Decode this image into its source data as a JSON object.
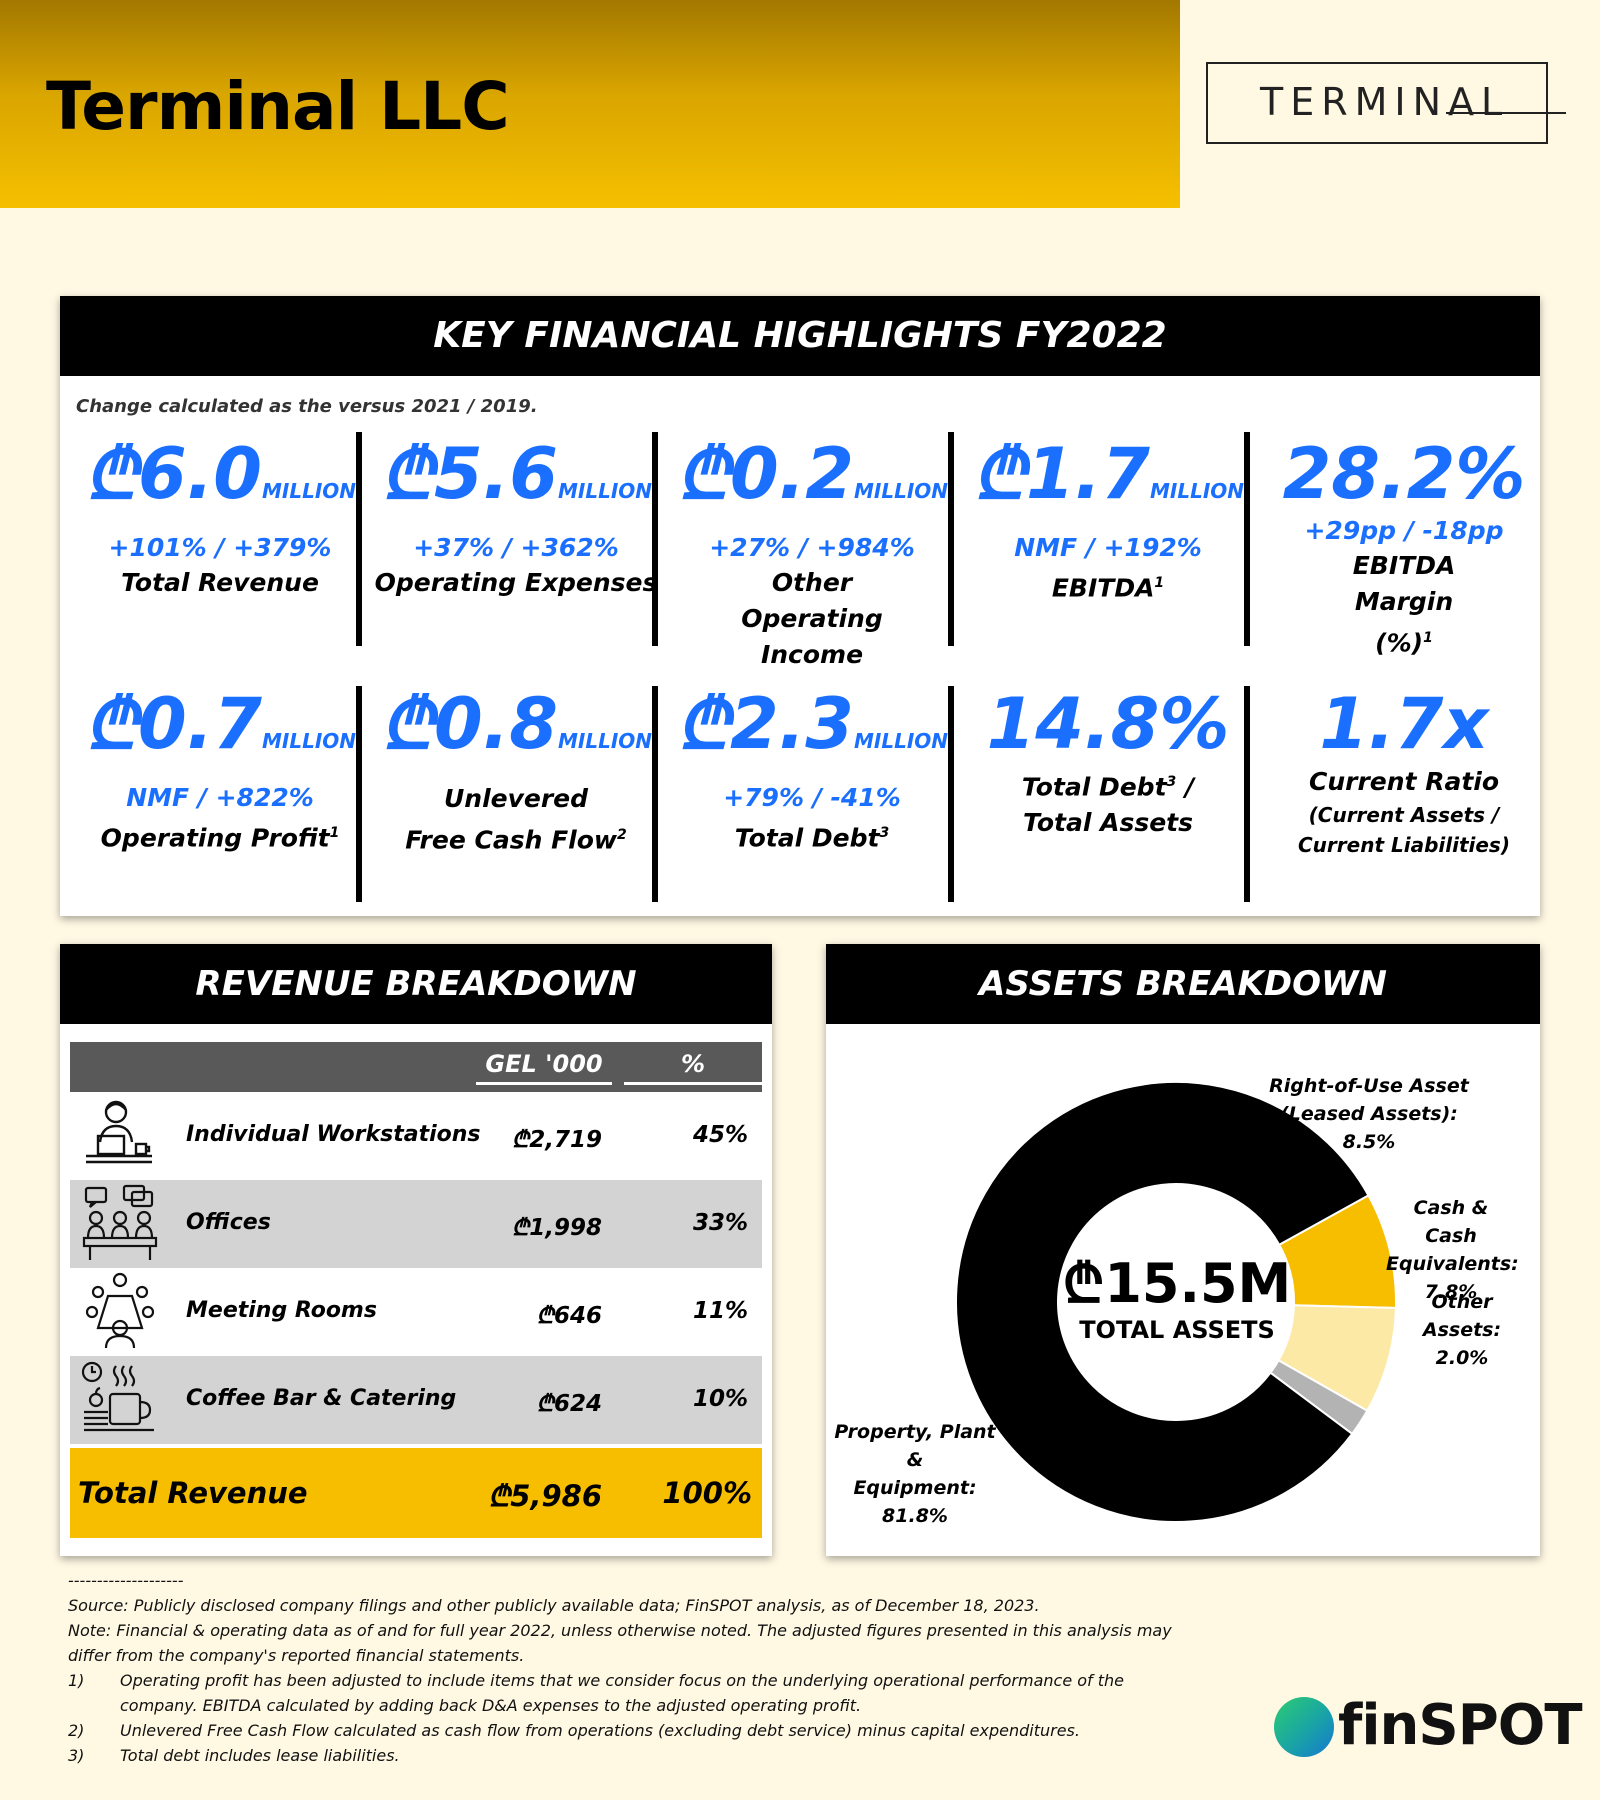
{
  "header": {
    "title": "Terminal LLC",
    "logo_text": "TERMINAL",
    "brand_color": "#f6c000"
  },
  "highlights": {
    "title": "KEY FINANCIAL HIGHLIGHTS FY2022",
    "note": "Change calculated as the versus 2021 / 2019.",
    "row1": [
      {
        "value": "₾6.0",
        "unit": "MILLION",
        "change": "+101% / +379%",
        "label": "Total Revenue",
        "sup": ""
      },
      {
        "value": "₾5.6",
        "unit": "MILLION",
        "change": "+37% / +362%",
        "label": "Operating Expenses",
        "sup": ""
      },
      {
        "value": "₾0.2",
        "unit": "MILLION",
        "change": "+27% / +984%",
        "label": "Other Operating Income",
        "sup": ""
      },
      {
        "value": "₾1.7",
        "unit": "MILLION",
        "change": "NMF / +192%",
        "label": "EBITDA",
        "sup": "1"
      },
      {
        "value": "28.2%",
        "unit": "",
        "change": "+29pp / -18pp",
        "label": "EBITDA Margin (%)",
        "sup": "1"
      }
    ],
    "row2": [
      {
        "value": "₾0.7",
        "unit": "MILLION",
        "change": "NMF / +822%",
        "label": "Operating Profit",
        "sup": "1"
      },
      {
        "value": "₾0.8",
        "unit": "MILLION",
        "change": "",
        "label_line1": "Unlevered",
        "label": "Free Cash Flow",
        "sup": "2"
      },
      {
        "value": "₾2.3",
        "unit": "MILLION",
        "change": "+79% / -41%",
        "label": "Total Debt",
        "sup": "3"
      },
      {
        "value": "14.8%",
        "unit": "",
        "change": "",
        "label_line1": "Total Debt",
        "label_line1_sup": "3",
        "label_line1_suffix": " /",
        "label": "Total Assets",
        "sup": ""
      },
      {
        "value": "1.7x",
        "unit": "",
        "change": "",
        "label_line1": "Current Ratio",
        "sub1": "(Current Assets /",
        "sub2": "Current Liabilities)"
      }
    ]
  },
  "revenue": {
    "title": "REVENUE BREAKDOWN",
    "col_value": "GEL '000",
    "col_pct": "%",
    "rows": [
      {
        "icon": "workstation-icon",
        "name": "Individual Workstations",
        "value": "₾2,719",
        "pct": "45%"
      },
      {
        "icon": "offices-icon",
        "name": "Offices",
        "value": "₾1,998",
        "pct": "33%"
      },
      {
        "icon": "meeting-room-icon",
        "name": "Meeting Rooms",
        "value": "₾646",
        "pct": "11%"
      },
      {
        "icon": "coffee-icon",
        "name": "Coffee Bar & Catering",
        "value": "₾624",
        "pct": "10%"
      }
    ],
    "total": {
      "name": "Total Revenue",
      "value": "₾5,986",
      "pct": "100%"
    }
  },
  "assets": {
    "title": "ASSETS BREAKDOWN",
    "center_value": "₾15.5M",
    "center_label": "TOTAL ASSETS",
    "labels": {
      "rou": [
        "Right-of-Use Asset",
        "(Leased Assets):",
        "8.5%"
      ],
      "cash": [
        "Cash & Cash",
        "Equivalents:",
        "7.8%"
      ],
      "other": [
        "Other Assets:",
        "2.0%"
      ],
      "ppe": [
        "Property, Plant &",
        "Equipment:",
        "81.8%"
      ]
    }
  },
  "chart_data": {
    "type": "pie",
    "categories": [
      "Right-of-Use Asset (Leased Assets)",
      "Cash & Cash Equivalents",
      "Other Assets",
      "Property, Plant & Equipment"
    ],
    "values": [
      8.5,
      7.8,
      2.0,
      81.8
    ],
    "colors": [
      "#f7be00",
      "#fde9a6",
      "#b3b3b3",
      "#000000"
    ],
    "donut": true,
    "center_text": "₾15.5M TOTAL ASSETS"
  },
  "footer": {
    "rule": "--------------------",
    "source": "Source: Publicly disclosed company filings and other publicly available data; FinSPOT analysis, as of December 18, 2023.",
    "note1": "Note: Financial & operating data as of and for full year 2022, unless otherwise noted. The adjusted figures presented in this analysis may",
    "note2": "differ from the company's reported financial statements.",
    "fn1_num": "1)",
    "fn1_line1": "Operating profit has been adjusted to include items that we consider focus on the underlying operational performance of the",
    "fn1_line2": "company. EBITDA calculated by adding back D&A expenses to the adjusted operating profit.",
    "fn2_num": "2)",
    "fn2": "Unlevered Free Cash Flow calculated as cash flow from operations (excluding debt service) minus capital expenditures.",
    "fn3_num": "3)",
    "fn3": "Total debt includes lease liabilities.",
    "brand": "finSPOT"
  }
}
